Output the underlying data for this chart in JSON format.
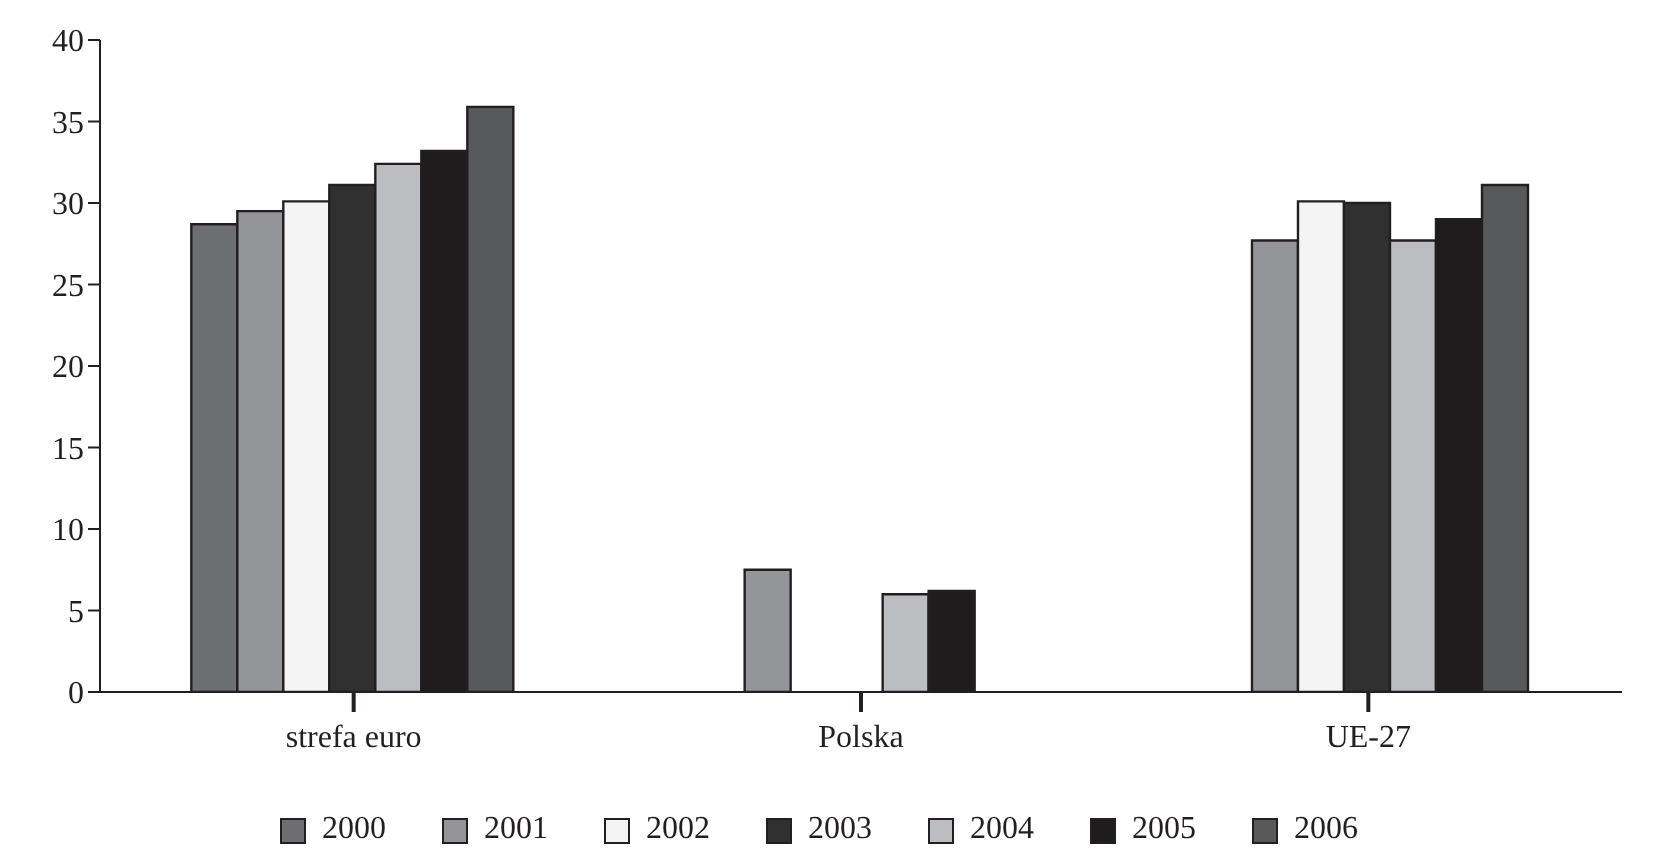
{
  "chart_data": {
    "type": "bar",
    "categories": [
      "strefa euro",
      "Polska",
      "UE-27"
    ],
    "series": [
      {
        "name": "2000",
        "color": "#6d6e71",
        "values": [
          28.7,
          null,
          null
        ]
      },
      {
        "name": "2001",
        "color": "#939598",
        "values": [
          29.5,
          7.5,
          27.7
        ]
      },
      {
        "name": "2002",
        "color": "#f4f4f4",
        "values": [
          30.1,
          null,
          30.1
        ]
      },
      {
        "name": "2003",
        "color": "#303031",
        "values": [
          31.1,
          null,
          30.0
        ]
      },
      {
        "name": "2004",
        "color": "#bcbdc0",
        "values": [
          32.4,
          6.0,
          27.7
        ]
      },
      {
        "name": "2005",
        "color": "#1e1c1d",
        "values": [
          33.2,
          6.2,
          29.0
        ]
      },
      {
        "name": "2006",
        "color": "#58595b",
        "values": [
          35.9,
          null,
          31.1
        ]
      }
    ],
    "ylim": [
      0,
      40
    ],
    "yticks": [
      0,
      5,
      10,
      15,
      20,
      25,
      30,
      35,
      40
    ],
    "grid": false,
    "legend": "bottom"
  }
}
